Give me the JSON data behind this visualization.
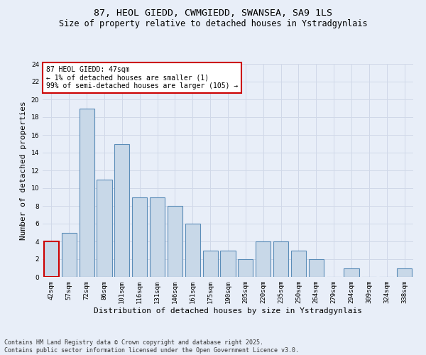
{
  "title_line1": "87, HEOL GIEDD, CWMGIEDD, SWANSEA, SA9 1LS",
  "title_line2": "Size of property relative to detached houses in Ystradgynlais",
  "xlabel": "Distribution of detached houses by size in Ystradgynlais",
  "ylabel": "Number of detached properties",
  "categories": [
    "42sqm",
    "57sqm",
    "72sqm",
    "86sqm",
    "101sqm",
    "116sqm",
    "131sqm",
    "146sqm",
    "161sqm",
    "175sqm",
    "190sqm",
    "205sqm",
    "220sqm",
    "235sqm",
    "250sqm",
    "264sqm",
    "279sqm",
    "294sqm",
    "309sqm",
    "324sqm",
    "338sqm"
  ],
  "values": [
    4,
    5,
    19,
    11,
    15,
    9,
    9,
    8,
    6,
    3,
    3,
    2,
    4,
    4,
    3,
    2,
    0,
    1,
    0,
    0,
    1
  ],
  "bar_color": "#c8d8e8",
  "bar_edge_color": "#5b8db8",
  "highlight_bar_index": 0,
  "highlight_edge_color": "#cc0000",
  "ylim": [
    0,
    24
  ],
  "yticks": [
    0,
    2,
    4,
    6,
    8,
    10,
    12,
    14,
    16,
    18,
    20,
    22,
    24
  ],
  "grid_color": "#d0d8e8",
  "background_color": "#e8eef8",
  "annotation_text": "87 HEOL GIEDD: 47sqm\n← 1% of detached houses are smaller (1)\n99% of semi-detached houses are larger (105) →",
  "annotation_box_color": "#ffffff",
  "annotation_edge_color": "#cc0000",
  "footer_text": "Contains HM Land Registry data © Crown copyright and database right 2025.\nContains public sector information licensed under the Open Government Licence v3.0.",
  "title_fontsize": 9.5,
  "subtitle_fontsize": 8.5,
  "tick_fontsize": 6.5,
  "label_fontsize": 8,
  "annotation_fontsize": 7,
  "footer_fontsize": 6
}
